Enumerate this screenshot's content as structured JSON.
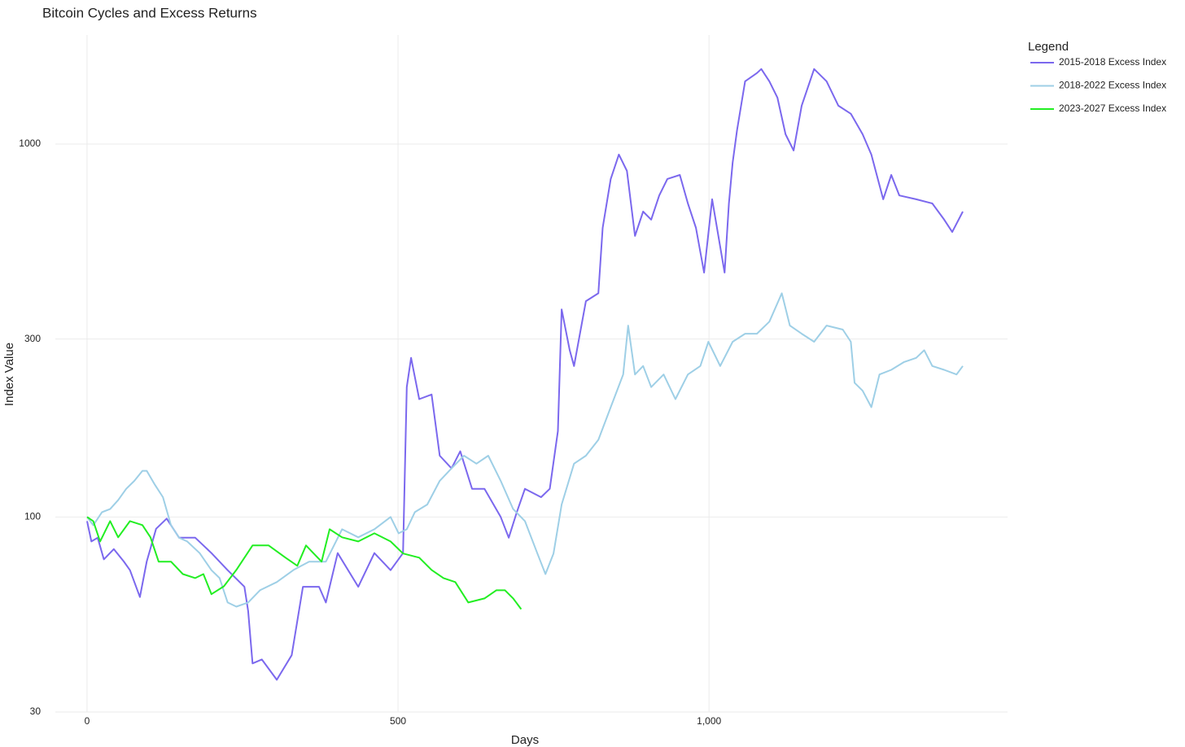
{
  "chart_data": {
    "type": "line",
    "title": "Bitcoin Cycles and Excess Returns",
    "x_label": "Days",
    "y_label": "Index Value",
    "legend_title": "Legend",
    "legend_position": "top-right",
    "log_y": true,
    "grid": true,
    "xlim": [
      -51,
      1480
    ],
    "ylim": [
      30,
      1960
    ],
    "xticks": [
      0,
      500,
      {
        "value": 1000,
        "label": "1,000"
      }
    ],
    "yticks": [
      30,
      100,
      300,
      1000
    ],
    "series": [
      {
        "name": "2015-2018 Excess Index",
        "color": "#7b68ee",
        "x": [
          0,
          7,
          17,
          27,
          43,
          59,
          69,
          85,
          96,
          111,
          128,
          148,
          174,
          200,
          226,
          253,
          259,
          266,
          281,
          305,
          329,
          347,
          373,
          384,
          403,
          436,
          462,
          488,
          508,
          514,
          521,
          534,
          554,
          567,
          586,
          600,
          619,
          639,
          665,
          678,
          691,
          704,
          730,
          744,
          757,
          763,
          776,
          783,
          802,
          822,
          829,
          842,
          855,
          868,
          881,
          894,
          907,
          920,
          933,
          953,
          966,
          979,
          992,
          1005,
          1025,
          1032,
          1038,
          1045,
          1058,
          1077,
          1084,
          1097,
          1110,
          1123,
          1136,
          1149,
          1169,
          1189,
          1208,
          1228,
          1247,
          1261,
          1280,
          1293,
          1306,
          1333,
          1359,
          1378,
          1391,
          1408
        ],
        "values": [
          97.5,
          86,
          88,
          77,
          82,
          76,
          72,
          61,
          76,
          93,
          99,
          88,
          88,
          80,
          72,
          65,
          56,
          40.5,
          41.5,
          36.6,
          42.6,
          65,
          65,
          59,
          80,
          65,
          80,
          72,
          80,
          223,
          267,
          207,
          213,
          146,
          135,
          150,
          119,
          119,
          100,
          88,
          103,
          119,
          113,
          119,
          170,
          360,
          280,
          254,
          379,
          398,
          596,
          806,
          937,
          847,
          567,
          659,
          627,
          728,
          806,
          826,
          693,
          596,
          452,
          711,
          452,
          693,
          891,
          1089,
          1473,
          1549,
          1589,
          1473,
          1332,
          1062,
          961,
          1267,
          1589,
          1473,
          1267,
          1205,
          1062,
          937,
          711,
          826,
          728,
          711,
          693,
          627,
          581,
          659
        ]
      },
      {
        "name": "2018-2022 Excess Index",
        "color": "#9ecfe6",
        "x": [
          0,
          10,
          24,
          37,
          50,
          63,
          76,
          89,
          96,
          109,
          122,
          135,
          148,
          161,
          181,
          200,
          213,
          226,
          240,
          259,
          278,
          305,
          332,
          357,
          384,
          410,
          436,
          462,
          488,
          501,
          514,
          527,
          547,
          567,
          586,
          606,
          626,
          645,
          665,
          685,
          704,
          724,
          737,
          750,
          763,
          783,
          802,
          822,
          842,
          862,
          870,
          881,
          894,
          907,
          927,
          946,
          966,
          986,
          999,
          1018,
          1038,
          1058,
          1077,
          1097,
          1117,
          1130,
          1149,
          1169,
          1189,
          1215,
          1228,
          1234,
          1247,
          1261,
          1274,
          1293,
          1313,
          1333,
          1346,
          1359,
          1378,
          1398,
          1408
        ],
        "values": [
          100,
          95,
          103,
          105,
          111,
          119,
          125,
          133,
          133,
          122,
          113,
          95,
          88,
          86,
          80,
          72,
          68.6,
          59,
          57.5,
          59,
          63.6,
          66.9,
          72.1,
          75.9,
          75.9,
          92.7,
          88.2,
          92.7,
          100,
          90.4,
          92.7,
          103,
          108,
          125,
          135,
          146,
          139,
          146,
          125,
          105,
          97.5,
          79.8,
          70.3,
          79.8,
          108,
          139,
          146,
          161,
          197,
          241,
          326,
          241,
          254,
          223,
          241,
          207,
          241,
          254,
          295,
          254,
          295,
          310,
          310,
          334,
          398,
          326,
          310,
          295,
          326,
          318,
          295,
          229,
          218,
          197,
          241,
          248,
          260,
          267,
          280,
          254,
          248,
          241,
          254
        ]
      },
      {
        "name": "2023-2027 Excess Index",
        "color": "#22ee22",
        "x": [
          0,
          10,
          21,
          37,
          50,
          69,
          89,
          102,
          115,
          135,
          154,
          174,
          187,
          200,
          220,
          240,
          266,
          292,
          319,
          338,
          352,
          377,
          390,
          410,
          436,
          462,
          488,
          508,
          534,
          554,
          573,
          592,
          613,
          639,
          658,
          672,
          685,
          698
        ],
        "values": [
          100,
          97.5,
          86,
          97.5,
          88.2,
          97.5,
          95.1,
          88.2,
          75.9,
          75.9,
          70.3,
          68.6,
          70.3,
          62.1,
          65.2,
          72.1,
          83.9,
          83.9,
          77.8,
          74,
          83.9,
          75.9,
          92.7,
          88.2,
          86,
          90.4,
          86,
          79.8,
          77.8,
          72.1,
          68.6,
          66.9,
          59,
          60.5,
          63.6,
          63.6,
          60.5,
          56.6
        ]
      }
    ]
  }
}
